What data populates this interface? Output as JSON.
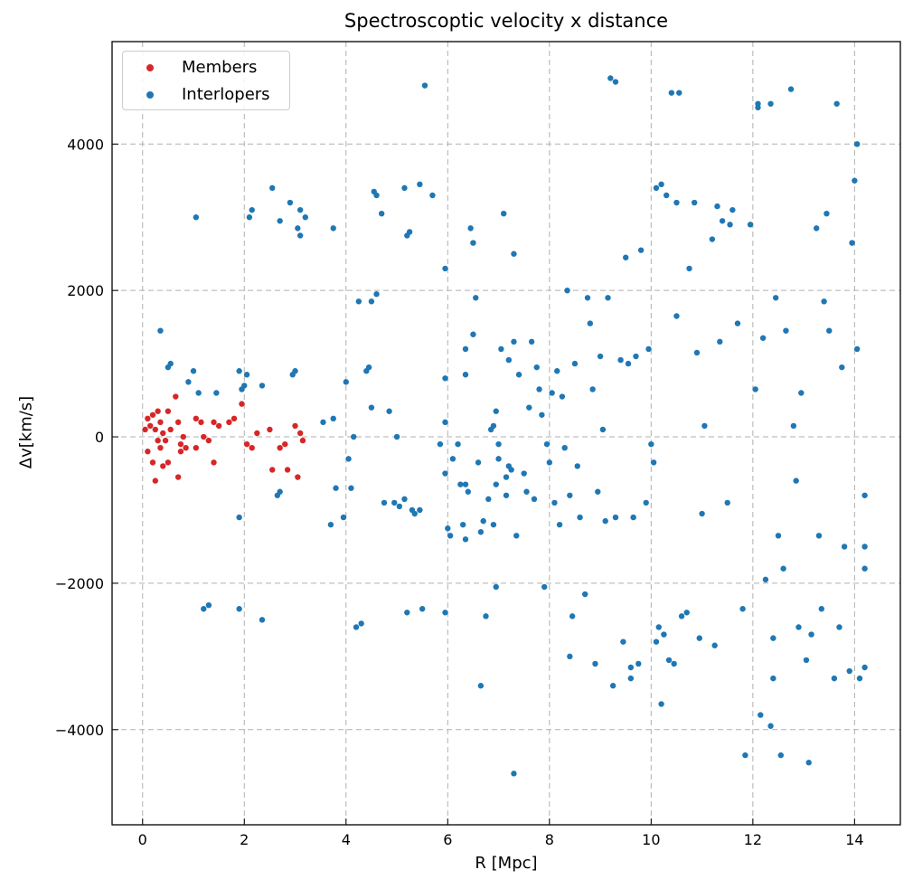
{
  "chart_data": {
    "type": "scatter",
    "title": "Spectroscoptic velocity x distance",
    "xlabel": "R [Mpc]",
    "ylabel": "Δv[km/s]",
    "xlim": [
      -0.6,
      14.9
    ],
    "ylim": [
      -5300,
      5400
    ],
    "x_ticks": [
      0,
      2,
      4,
      6,
      8,
      10,
      12,
      14
    ],
    "x_tick_labels": [
      "0",
      "2",
      "4",
      "6",
      "8",
      "10",
      "12",
      "14"
    ],
    "y_ticks": [
      -4000,
      -2000,
      0,
      2000,
      4000
    ],
    "y_tick_labels": [
      "−4000",
      "−2000",
      "0",
      "2000",
      "4000"
    ],
    "grid": true,
    "legend_position": "top-left",
    "series": [
      {
        "name": "Members",
        "color": "#d62728",
        "points": [
          [
            0.1,
            250
          ],
          [
            0.15,
            150
          ],
          [
            0.2,
            300
          ],
          [
            0.25,
            100
          ],
          [
            0.3,
            350
          ],
          [
            0.35,
            200
          ],
          [
            0.4,
            50
          ],
          [
            0.45,
            -50
          ],
          [
            0.5,
            350
          ],
          [
            0.55,
            100
          ],
          [
            0.65,
            550
          ],
          [
            0.7,
            200
          ],
          [
            0.75,
            -100
          ],
          [
            0.8,
            0
          ],
          [
            0.85,
            -150
          ],
          [
            1.05,
            250
          ],
          [
            1.15,
            200
          ],
          [
            1.2,
            0
          ],
          [
            1.3,
            -50
          ],
          [
            1.4,
            200
          ],
          [
            1.5,
            150
          ],
          [
            1.7,
            200
          ],
          [
            1.8,
            250
          ],
          [
            1.95,
            450
          ],
          [
            2.05,
            -100
          ],
          [
            2.15,
            -150
          ],
          [
            2.25,
            50
          ],
          [
            2.5,
            100
          ],
          [
            2.55,
            -450
          ],
          [
            2.7,
            -150
          ],
          [
            2.8,
            -100
          ],
          [
            2.85,
            -450
          ],
          [
            3.0,
            150
          ],
          [
            3.05,
            -550
          ],
          [
            3.1,
            50
          ],
          [
            3.15,
            -50
          ],
          [
            0.1,
            -200
          ],
          [
            0.2,
            -350
          ],
          [
            0.25,
            -600
          ],
          [
            0.3,
            -50
          ],
          [
            0.35,
            -150
          ],
          [
            0.4,
            -400
          ],
          [
            0.5,
            -350
          ],
          [
            0.7,
            -550
          ],
          [
            0.75,
            -200
          ],
          [
            1.05,
            -150
          ],
          [
            1.4,
            -350
          ],
          [
            0.05,
            100
          ]
        ]
      },
      {
        "name": "Interlopers",
        "color": "#1f77b4",
        "points": [
          [
            0.35,
            1450
          ],
          [
            0.5,
            950
          ],
          [
            0.55,
            1000
          ],
          [
            0.9,
            750
          ],
          [
            1.0,
            900
          ],
          [
            1.05,
            3000
          ],
          [
            1.1,
            600
          ],
          [
            1.45,
            600
          ],
          [
            1.2,
            -2350
          ],
          [
            1.3,
            -2300
          ],
          [
            1.9,
            -1100
          ],
          [
            1.9,
            -2350
          ],
          [
            1.9,
            900
          ],
          [
            1.95,
            650
          ],
          [
            2.0,
            700
          ],
          [
            2.05,
            850
          ],
          [
            2.1,
            3000
          ],
          [
            2.15,
            3100
          ],
          [
            2.35,
            700
          ],
          [
            2.35,
            -2500
          ],
          [
            2.55,
            3400
          ],
          [
            2.65,
            -800
          ],
          [
            2.7,
            2950
          ],
          [
            2.7,
            -750
          ],
          [
            2.9,
            3200
          ],
          [
            2.95,
            850
          ],
          [
            3.0,
            900
          ],
          [
            3.05,
            2850
          ],
          [
            3.1,
            2750
          ],
          [
            3.1,
            3100
          ],
          [
            3.2,
            3000
          ],
          [
            3.55,
            200
          ],
          [
            3.75,
            2850
          ],
          [
            3.75,
            250
          ],
          [
            3.8,
            -700
          ],
          [
            3.7,
            -1200
          ],
          [
            3.95,
            -1100
          ],
          [
            4.0,
            750
          ],
          [
            4.05,
            -300
          ],
          [
            4.1,
            -700
          ],
          [
            4.15,
            0
          ],
          [
            4.2,
            -2600
          ],
          [
            4.25,
            1850
          ],
          [
            4.3,
            -2550
          ],
          [
            4.4,
            900
          ],
          [
            4.45,
            950
          ],
          [
            4.5,
            1850
          ],
          [
            4.55,
            3350
          ],
          [
            4.6,
            3300
          ],
          [
            4.6,
            1950
          ],
          [
            4.5,
            400
          ],
          [
            4.7,
            3050
          ],
          [
            4.75,
            -900
          ],
          [
            4.85,
            350
          ],
          [
            4.95,
            -900
          ],
          [
            5.0,
            0
          ],
          [
            5.05,
            -950
          ],
          [
            5.15,
            -850
          ],
          [
            5.2,
            -2400
          ],
          [
            5.2,
            2750
          ],
          [
            5.15,
            3400
          ],
          [
            5.25,
            2800
          ],
          [
            5.3,
            -1000
          ],
          [
            5.35,
            -1050
          ],
          [
            5.45,
            -1000
          ],
          [
            5.45,
            3450
          ],
          [
            5.55,
            4800
          ],
          [
            5.5,
            -2350
          ],
          [
            5.7,
            3300
          ],
          [
            5.85,
            -100
          ],
          [
            5.95,
            200
          ],
          [
            5.95,
            800
          ],
          [
            5.95,
            -500
          ],
          [
            6.0,
            -1250
          ],
          [
            6.05,
            -1350
          ],
          [
            5.95,
            -2400
          ],
          [
            5.95,
            2300
          ],
          [
            6.1,
            -300
          ],
          [
            6.2,
            -100
          ],
          [
            6.25,
            -650
          ],
          [
            6.3,
            -1200
          ],
          [
            6.35,
            -650
          ],
          [
            6.35,
            -1400
          ],
          [
            6.35,
            850
          ],
          [
            6.35,
            1200
          ],
          [
            6.4,
            -750
          ],
          [
            6.45,
            2850
          ],
          [
            6.5,
            2650
          ],
          [
            6.5,
            1400
          ],
          [
            6.55,
            1900
          ],
          [
            6.6,
            -350
          ],
          [
            6.65,
            -1300
          ],
          [
            6.65,
            -3400
          ],
          [
            6.7,
            -1150
          ],
          [
            6.75,
            -2450
          ],
          [
            6.8,
            -850
          ],
          [
            6.85,
            100
          ],
          [
            6.9,
            -1200
          ],
          [
            6.9,
            150
          ],
          [
            6.95,
            -650
          ],
          [
            6.95,
            350
          ],
          [
            6.95,
            -2050
          ],
          [
            7.0,
            -100
          ],
          [
            7.0,
            -300
          ],
          [
            7.05,
            1200
          ],
          [
            7.1,
            3050
          ],
          [
            7.15,
            -550
          ],
          [
            7.15,
            -800
          ],
          [
            7.2,
            -400
          ],
          [
            7.2,
            1050
          ],
          [
            7.25,
            -450
          ],
          [
            7.3,
            1300
          ],
          [
            7.3,
            -4600
          ],
          [
            7.3,
            2500
          ],
          [
            7.35,
            -1350
          ],
          [
            7.4,
            850
          ],
          [
            7.5,
            -500
          ],
          [
            7.55,
            -750
          ],
          [
            7.6,
            400
          ],
          [
            7.65,
            1300
          ],
          [
            7.7,
            -850
          ],
          [
            7.75,
            950
          ],
          [
            7.8,
            650
          ],
          [
            7.85,
            300
          ],
          [
            7.9,
            -2050
          ],
          [
            7.95,
            -100
          ],
          [
            8.0,
            -350
          ],
          [
            8.05,
            600
          ],
          [
            8.1,
            -900
          ],
          [
            8.15,
            900
          ],
          [
            8.2,
            -1200
          ],
          [
            8.25,
            550
          ],
          [
            8.3,
            -150
          ],
          [
            8.35,
            2000
          ],
          [
            8.4,
            -800
          ],
          [
            8.4,
            -3000
          ],
          [
            8.45,
            -2450
          ],
          [
            8.5,
            1000
          ],
          [
            8.55,
            -400
          ],
          [
            8.6,
            -1100
          ],
          [
            8.7,
            -2150
          ],
          [
            8.75,
            1900
          ],
          [
            8.8,
            1550
          ],
          [
            8.85,
            650
          ],
          [
            8.9,
            -3100
          ],
          [
            8.95,
            -750
          ],
          [
            9.0,
            1100
          ],
          [
            9.05,
            100
          ],
          [
            9.1,
            -1150
          ],
          [
            9.15,
            1900
          ],
          [
            9.2,
            4900
          ],
          [
            9.25,
            -3400
          ],
          [
            9.3,
            4850
          ],
          [
            9.3,
            -1100
          ],
          [
            9.4,
            1050
          ],
          [
            9.45,
            -2800
          ],
          [
            9.5,
            2450
          ],
          [
            9.55,
            1000
          ],
          [
            9.6,
            -3150
          ],
          [
            9.6,
            -3300
          ],
          [
            9.65,
            -1100
          ],
          [
            9.7,
            1100
          ],
          [
            9.75,
            -3100
          ],
          [
            9.8,
            2550
          ],
          [
            9.9,
            -900
          ],
          [
            9.95,
            1200
          ],
          [
            10.0,
            -100
          ],
          [
            10.05,
            -350
          ],
          [
            10.1,
            3400
          ],
          [
            10.1,
            -2800
          ],
          [
            10.15,
            -2600
          ],
          [
            10.2,
            3450
          ],
          [
            10.2,
            -3650
          ],
          [
            10.25,
            -2700
          ],
          [
            10.3,
            3300
          ],
          [
            10.35,
            -3050
          ],
          [
            10.4,
            4700
          ],
          [
            10.45,
            -3100
          ],
          [
            10.5,
            3200
          ],
          [
            10.5,
            1650
          ],
          [
            10.55,
            4700
          ],
          [
            10.6,
            -2450
          ],
          [
            10.7,
            -2400
          ],
          [
            10.75,
            2300
          ],
          [
            10.85,
            3200
          ],
          [
            10.9,
            1150
          ],
          [
            10.95,
            -2750
          ],
          [
            11.0,
            -1050
          ],
          [
            11.05,
            150
          ],
          [
            11.2,
            2700
          ],
          [
            11.25,
            -2850
          ],
          [
            11.3,
            3150
          ],
          [
            11.35,
            1300
          ],
          [
            11.4,
            2950
          ],
          [
            11.5,
            -900
          ],
          [
            11.55,
            2900
          ],
          [
            11.6,
            3100
          ],
          [
            11.7,
            1550
          ],
          [
            11.8,
            -2350
          ],
          [
            11.85,
            -4350
          ],
          [
            11.95,
            2900
          ],
          [
            12.05,
            650
          ],
          [
            12.1,
            4550
          ],
          [
            12.1,
            4500
          ],
          [
            12.15,
            -3800
          ],
          [
            12.2,
            1350
          ],
          [
            12.25,
            -1950
          ],
          [
            12.35,
            4550
          ],
          [
            12.35,
            -3950
          ],
          [
            12.4,
            -3300
          ],
          [
            12.4,
            -2750
          ],
          [
            12.45,
            1900
          ],
          [
            12.5,
            -1350
          ],
          [
            12.55,
            -4350
          ],
          [
            12.6,
            -1800
          ],
          [
            12.65,
            1450
          ],
          [
            12.75,
            4750
          ],
          [
            12.8,
            150
          ],
          [
            12.85,
            -600
          ],
          [
            12.9,
            -2600
          ],
          [
            12.95,
            600
          ],
          [
            13.05,
            -3050
          ],
          [
            13.1,
            -4450
          ],
          [
            13.15,
            -2700
          ],
          [
            13.25,
            2850
          ],
          [
            13.3,
            -1350
          ],
          [
            13.35,
            -2350
          ],
          [
            13.4,
            1850
          ],
          [
            13.45,
            3050
          ],
          [
            13.5,
            1450
          ],
          [
            13.6,
            -3300
          ],
          [
            13.65,
            4550
          ],
          [
            13.7,
            -2600
          ],
          [
            13.75,
            950
          ],
          [
            13.8,
            -1500
          ],
          [
            13.9,
            -3200
          ],
          [
            13.95,
            2650
          ],
          [
            14.0,
            3500
          ],
          [
            14.05,
            4000
          ],
          [
            14.05,
            1200
          ],
          [
            14.1,
            -3300
          ],
          [
            14.2,
            -1500
          ],
          [
            14.2,
            -3150
          ],
          [
            14.2,
            -800
          ],
          [
            14.2,
            -1800
          ]
        ]
      }
    ]
  }
}
